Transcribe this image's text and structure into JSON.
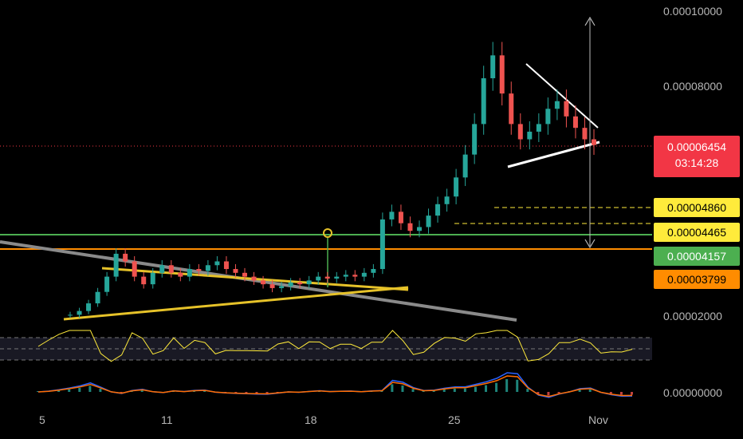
{
  "chart_data": {
    "type": "line",
    "title": "",
    "xlabel": "",
    "ylabel": "",
    "ylim": [
      0.0,
      0.0001
    ],
    "y_ticks": [
      "0.00010000",
      "0.00008000",
      "0.00002000",
      "0.00000000"
    ],
    "x_ticks": [
      "5",
      "11",
      "18",
      "25",
      "Nov"
    ],
    "series": [
      {
        "values": [
          2e-05,
          2.1e-05,
          2.3e-05,
          2.6e-05,
          3e-05,
          3.6e-05,
          3.4e-05,
          3e-05,
          2.8e-05,
          3.1e-05,
          3.3e-05,
          3.1e-05,
          3e-05,
          3.2e-05,
          3.15e-05,
          3.3e-05,
          3.4e-05,
          3.2e-05,
          3.1e-05,
          3e-05,
          2.9e-05,
          2.8e-05,
          2.7e-05,
          2.75e-05,
          2.85e-05,
          2.8e-05,
          2.9e-05,
          3e-05,
          2.95e-05,
          3e-05,
          3.05e-05,
          3e-05,
          3.1e-05,
          3.2e-05,
          4.5e-05,
          4.7e-05,
          4.4e-05,
          4.2e-05,
          4.3e-05,
          4.6e-05,
          4.9e-05,
          5.1e-05,
          5.6e-05,
          6.2e-05,
          7e-05,
          8.2e-05,
          8.8e-05,
          7.8e-05,
          7e-05,
          6.6e-05,
          6.8e-05,
          7e-05,
          7.4e-05,
          7.6e-05,
          7.2e-05,
          6.9e-05,
          6.6e-05,
          6.45e-05
        ]
      }
    ],
    "price_labels": [
      {
        "value": "0.00006454",
        "time": "03:14:28",
        "color": "#f23645"
      },
      {
        "value": "0.00004860",
        "color": "#ffeb3b"
      },
      {
        "value": "0.00004465",
        "color": "#ffeb3b"
      },
      {
        "value": "0.00004157",
        "color": "#4caf50"
      },
      {
        "value": "0.00003799",
        "color": "#ff8c00"
      }
    ]
  }
}
